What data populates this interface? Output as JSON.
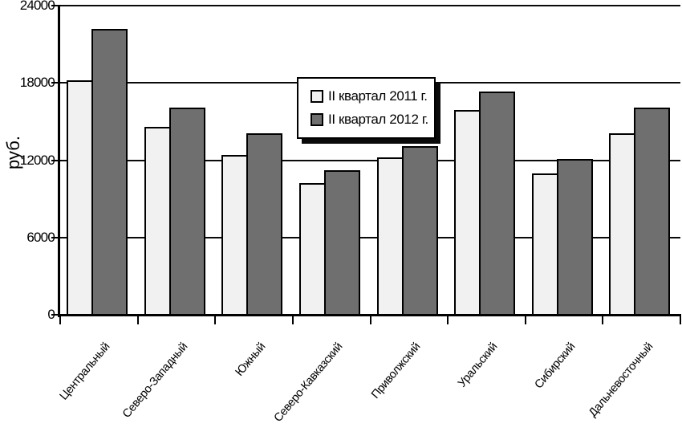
{
  "chart_data": {
    "type": "bar",
    "title": "",
    "ylabel": "руб.",
    "xlabel": "",
    "categories": [
      "Центральный",
      "Северо-Западный",
      "Южный",
      "Северо-Кавказский",
      "Приволжский",
      "Уральский",
      "Сибирский",
      "Дальневосточный"
    ],
    "series": [
      {
        "name": "II квартал 2011 г.",
        "color": "#f1f1f1",
        "values": [
          18200,
          14600,
          12400,
          10200,
          12200,
          15900,
          11000,
          14100
        ]
      },
      {
        "name": "II квартал 2012 г.",
        "color": "#6f6f6f",
        "values": [
          22200,
          16100,
          14100,
          11200,
          13100,
          17300,
          12100,
          16100
        ]
      }
    ],
    "ylim": [
      0,
      24000
    ],
    "ytick_step": 6000,
    "ytick_labels": [
      "0",
      "6000",
      "12000",
      "18000",
      "24000"
    ],
    "grid": "horizontal",
    "legend_position": "top-center",
    "bar_border_color": "#000000",
    "axis_color": "#000000",
    "background_color": "#ffffff"
  }
}
